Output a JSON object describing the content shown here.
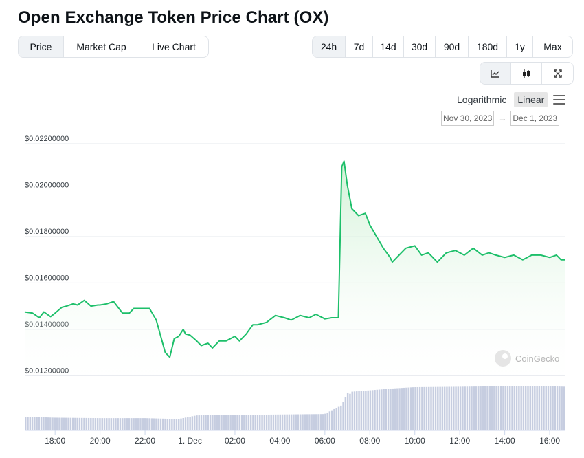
{
  "title": "Open Exchange Token Price Chart (OX)",
  "left_tabs": [
    {
      "label": "Price",
      "active": true
    },
    {
      "label": "Market Cap",
      "active": false
    },
    {
      "label": "Live Chart",
      "active": false
    }
  ],
  "range_tabs": [
    {
      "label": "24h",
      "active": true
    },
    {
      "label": "7d",
      "active": false
    },
    {
      "label": "14d",
      "active": false
    },
    {
      "label": "30d",
      "active": false
    },
    {
      "label": "90d",
      "active": false
    },
    {
      "label": "180d",
      "active": false
    },
    {
      "label": "1y",
      "active": false
    },
    {
      "label": "Max",
      "active": false
    }
  ],
  "chart_type_buttons": [
    {
      "icon": "line-chart-icon",
      "active": true
    },
    {
      "icon": "candlestick-icon",
      "active": false
    },
    {
      "icon": "expand-icon",
      "active": false
    }
  ],
  "scale": {
    "logarithmic": "Logarithmic",
    "linear": "Linear",
    "active": "Linear"
  },
  "date_range": {
    "from": "Nov 30, 2023",
    "arrow": "→",
    "to": "Dec 1, 2023"
  },
  "watermark": "CoinGecko",
  "colors": {
    "line": "#1dbf6a",
    "area_top": "#c9efcf",
    "volume": "#c6cde0",
    "grid": "#e6e9ee",
    "axis_text": "#333a40"
  },
  "chart_data": {
    "type": "line",
    "title": "",
    "xlabel": "",
    "ylabel": "",
    "ylim": [
      0.0113,
      0.022
    ],
    "y_ticks": [
      0.012,
      0.014,
      0.016,
      0.018,
      0.02,
      0.022
    ],
    "y_tick_labels": [
      "$0.01200000",
      "$0.01400000",
      "$0.01600000",
      "$0.01800000",
      "$0.02000000",
      "$0.02200000"
    ],
    "x_tick_labels": [
      "18:00",
      "20:00",
      "22:00",
      "1. Dec",
      "02:00",
      "04:00",
      "06:00",
      "08:00",
      "10:00",
      "12:00",
      "14:00",
      "16:00"
    ],
    "x_tick_hours": [
      18,
      20,
      22,
      24,
      26,
      28,
      30,
      32,
      34,
      36,
      38,
      40
    ],
    "x_range_hours": [
      16.65,
      40.7
    ],
    "grid": true,
    "series": [
      {
        "values_x_hours": [
          16.65,
          17.0,
          17.3,
          17.5,
          17.8,
          18.0,
          18.3,
          18.5,
          18.8,
          19.0,
          19.3,
          19.6,
          19.9,
          20.0,
          20.3,
          20.6,
          21.0,
          21.3,
          21.5,
          21.8,
          22.2,
          22.5,
          22.9,
          23.1,
          23.3,
          23.5,
          23.7,
          23.8,
          24.0,
          24.3,
          24.5,
          24.8,
          25.0,
          25.3,
          25.6,
          26.0,
          26.2,
          26.5,
          26.8,
          27.0,
          27.4,
          27.8,
          28.2,
          28.5,
          28.9,
          29.3,
          29.6,
          30.0,
          30.3,
          30.6,
          30.75,
          30.85,
          31.0,
          31.2,
          31.5,
          31.8,
          32.0,
          32.3,
          32.6,
          32.9,
          33.0,
          33.3,
          33.6,
          34.0,
          34.3,
          34.6,
          35.0,
          35.4,
          35.8,
          36.2,
          36.6,
          37.0,
          37.3,
          37.6,
          38.0,
          38.4,
          38.8,
          39.2,
          39.6,
          40.0,
          40.3,
          40.5,
          40.7
        ],
        "values": [
          0.01475,
          0.0147,
          0.0145,
          0.01475,
          0.01455,
          0.0147,
          0.01495,
          0.015,
          0.0151,
          0.01505,
          0.01525,
          0.015,
          0.01505,
          0.01505,
          0.0151,
          0.0152,
          0.0147,
          0.0147,
          0.0149,
          0.0149,
          0.0149,
          0.0144,
          0.013,
          0.0128,
          0.0136,
          0.0137,
          0.014,
          0.0138,
          0.01375,
          0.0135,
          0.0133,
          0.0134,
          0.0132,
          0.0135,
          0.0135,
          0.0137,
          0.0135,
          0.0138,
          0.0142,
          0.0142,
          0.0143,
          0.0146,
          0.0145,
          0.0144,
          0.0146,
          0.0145,
          0.01465,
          0.01445,
          0.0145,
          0.0145,
          0.021,
          0.02125,
          0.0202,
          0.0192,
          0.0189,
          0.019,
          0.0185,
          0.018,
          0.0175,
          0.0171,
          0.0169,
          0.0172,
          0.0175,
          0.0176,
          0.0172,
          0.0173,
          0.0169,
          0.0173,
          0.0174,
          0.0172,
          0.0175,
          0.0172,
          0.0173,
          0.0172,
          0.0171,
          0.0172,
          0.017,
          0.0172,
          0.0172,
          0.0171,
          0.0172,
          0.017,
          0.017
        ]
      }
    ],
    "volume_relative": {
      "x_hours": [
        16.65,
        18.0,
        20.0,
        22.0,
        23.5,
        24.3,
        26.0,
        28.0,
        30.0,
        30.75,
        31.2,
        32.0,
        33.0,
        34.0,
        36.0,
        38.0,
        40.0,
        40.7
      ],
      "values": [
        0.3,
        0.28,
        0.27,
        0.27,
        0.25,
        0.33,
        0.34,
        0.35,
        0.36,
        0.55,
        0.85,
        0.88,
        0.92,
        0.95,
        0.96,
        0.97,
        0.97,
        0.96
      ]
    }
  }
}
